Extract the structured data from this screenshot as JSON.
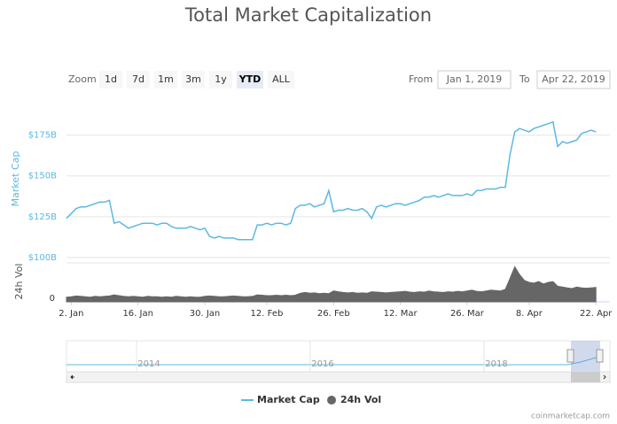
{
  "chart_data": {
    "type": "line",
    "title": "Total Market Capitalization",
    "y_label": "Market Cap",
    "y2_label": "24h Vol",
    "categories": [
      null,
      "2. Jan",
      null,
      null,
      null,
      null,
      null,
      null,
      null,
      null,
      null,
      null,
      null,
      null,
      null,
      "16. Jan",
      null,
      null,
      null,
      null,
      null,
      null,
      null,
      null,
      null,
      null,
      null,
      null,
      null,
      "30. Jan",
      null,
      null,
      null,
      null,
      null,
      null,
      null,
      null,
      null,
      null,
      null,
      null,
      "12. Feb",
      null,
      null,
      null,
      null,
      null,
      null,
      null,
      null,
      null,
      null,
      null,
      null,
      null,
      "26. Feb",
      null,
      null,
      null,
      null,
      null,
      null,
      null,
      null,
      null,
      null,
      null,
      null,
      null,
      "12. Mar",
      null,
      null,
      null,
      null,
      null,
      null,
      null,
      null,
      null,
      null,
      null,
      null,
      null,
      "26. Mar",
      null,
      null,
      null,
      null,
      null,
      null,
      null,
      null,
      null,
      null,
      null,
      null,
      "8. Apr",
      null,
      null,
      null,
      null,
      null,
      null,
      null,
      null,
      null,
      null,
      null,
      null,
      null,
      "22. Apr"
    ],
    "series": [
      {
        "name": "Market Cap",
        "color": "#5cb8e4",
        "values": [
          124,
          127,
          130,
          131,
          131,
          132,
          133,
          134,
          134,
          135,
          121,
          122,
          120,
          118,
          119,
          120,
          121,
          121,
          121,
          120,
          121,
          121,
          119,
          118,
          118,
          118,
          119,
          118,
          117,
          118,
          113,
          112,
          113,
          112,
          112,
          112,
          111,
          111,
          111,
          111,
          120,
          120,
          121,
          120,
          121,
          121,
          120,
          121,
          130,
          132,
          132,
          133,
          131,
          132,
          133,
          141,
          128,
          129,
          129,
          130,
          129,
          129,
          130,
          128,
          124,
          131,
          132,
          131,
          132,
          133,
          133,
          132,
          133,
          134,
          135,
          137,
          137,
          138,
          137,
          138,
          139,
          138,
          138,
          138,
          139,
          138,
          141,
          141,
          142,
          142,
          142,
          143,
          143,
          163,
          177,
          179,
          178,
          177,
          179,
          180,
          181,
          182,
          183,
          168,
          171,
          170,
          171,
          172,
          176,
          177,
          178,
          177
        ]
      },
      {
        "name": "24h Vol",
        "color": "#666666",
        "axis": "y2",
        "values": [
          12,
          13,
          15,
          14,
          13,
          12,
          14,
          13,
          14,
          15,
          18,
          16,
          14,
          13,
          14,
          13,
          12,
          14,
          13,
          13,
          12,
          13,
          12,
          14,
          13,
          12,
          13,
          12,
          12,
          14,
          15,
          14,
          13,
          13,
          14,
          15,
          14,
          13,
          13,
          14,
          18,
          17,
          16,
          16,
          17,
          16,
          17,
          16,
          17,
          22,
          24,
          22,
          23,
          21,
          22,
          21,
          28,
          26,
          24,
          23,
          24,
          22,
          23,
          22,
          26,
          25,
          24,
          23,
          24,
          25,
          26,
          27,
          25,
          24,
          26,
          25,
          28,
          26,
          25,
          24,
          26,
          25,
          27,
          26,
          28,
          30,
          27,
          26,
          28,
          30,
          29,
          28,
          32,
          60,
          90,
          70,
          55,
          50,
          48,
          52,
          46,
          50,
          52,
          40,
          38,
          36,
          34,
          38,
          36,
          35,
          36,
          37
        ]
      }
    ],
    "ylim": [
      100,
      197
    ],
    "yticks": [
      {
        "value": 100,
        "label": "$100B"
      },
      {
        "value": 125,
        "label": "$125B"
      },
      {
        "value": 150,
        "label": "$150B"
      },
      {
        "value": 175,
        "label": "$175B"
      }
    ],
    "y2lim": [
      0,
      100
    ],
    "y2ticks": [
      0
    ],
    "grid": true,
    "legend": "bottom",
    "navigator_labels": [
      "2014",
      "2016",
      "2018"
    ],
    "credit": "coinmarketcap.com"
  },
  "range_selector": {
    "zoom_label": "Zoom",
    "buttons": [
      "1d",
      "7d",
      "1m",
      "3m",
      "1y",
      "YTD",
      "ALL"
    ],
    "selected": "YTD",
    "from_label": "From",
    "from_value": "Jan 1, 2019",
    "to_label": "To",
    "to_value": "Apr 22, 2019"
  }
}
